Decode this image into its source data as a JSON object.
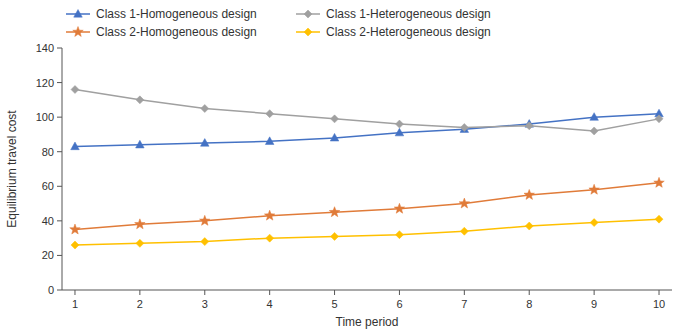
{
  "chart_data": {
    "type": "line",
    "xlabel": "Time period",
    "ylabel": "Equilibrium travel cost",
    "x": [
      1,
      2,
      3,
      4,
      5,
      6,
      7,
      8,
      9,
      10
    ],
    "series": [
      {
        "name": "Class 1-Homogeneous design",
        "color": "#4472C4",
        "marker": "triangle",
        "values": [
          83,
          84,
          85,
          86,
          88,
          91,
          93,
          96,
          100,
          102
        ]
      },
      {
        "name": "Class 2-Homogeneous design",
        "color": "#E07B39",
        "marker": "star",
        "values": [
          35,
          38,
          40,
          43,
          45,
          47,
          50,
          55,
          58,
          62
        ]
      },
      {
        "name": "Class 1-Heterogeneous design",
        "color": "#A0A0A0",
        "marker": "diamond",
        "values": [
          116,
          110,
          105,
          102,
          99,
          96,
          94,
          95,
          92,
          99
        ]
      },
      {
        "name": "Class 2-Heterogeneous design",
        "color": "#FFC000",
        "marker": "diamond",
        "values": [
          26,
          27,
          28,
          30,
          31,
          32,
          34,
          37,
          39,
          41
        ]
      }
    ],
    "xlim": [
      0.8,
      10.2
    ],
    "xticks": [
      1,
      2,
      3,
      4,
      5,
      6,
      7,
      8,
      9,
      10
    ],
    "ylim": [
      0,
      140
    ],
    "yticks": [
      0,
      20,
      40,
      60,
      80,
      100,
      120,
      140
    ],
    "legend": "upper left",
    "grid": false
  }
}
